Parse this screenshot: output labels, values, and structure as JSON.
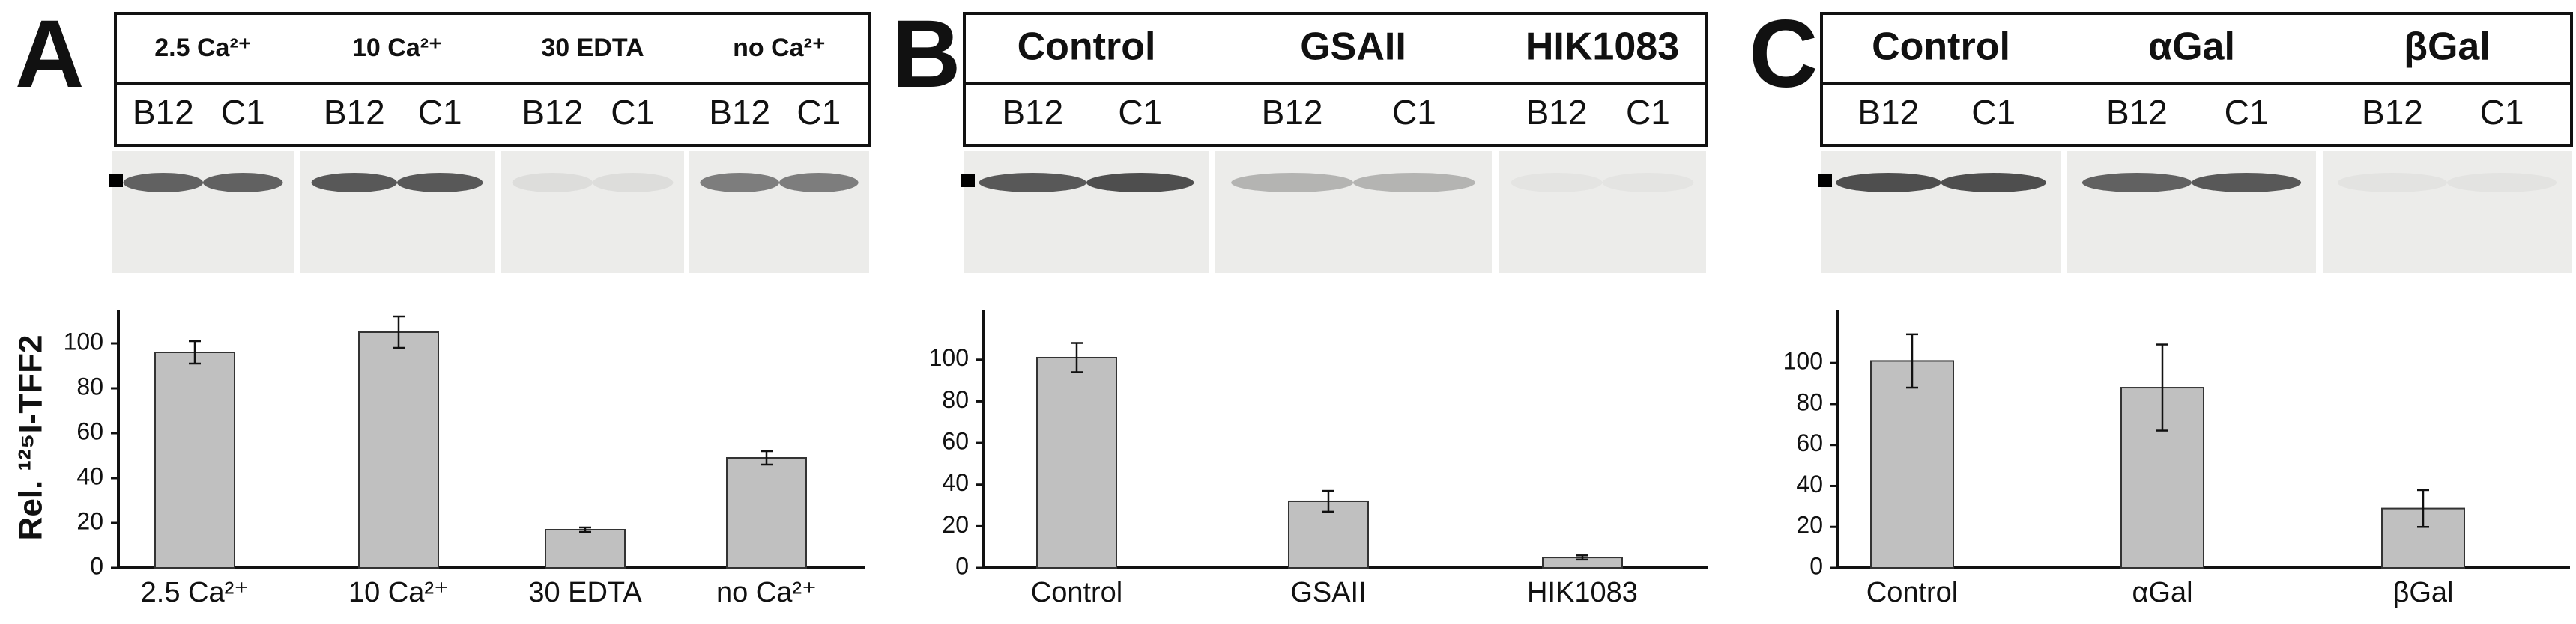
{
  "chart_data": [
    {
      "type": "bar",
      "panel_label": "A",
      "y_label": "Rel. ¹²⁵I-TFF2",
      "conditions": [
        "2.5 Ca²⁺",
        "10 Ca²⁺",
        "30 EDTA",
        "no Ca²⁺"
      ],
      "lanes": [
        [
          "B12",
          "C1"
        ],
        [
          "B12",
          "C1"
        ],
        [
          "B12",
          "C1"
        ],
        [
          "B12",
          "C1"
        ]
      ],
      "categories": [
        "2.5 Ca²⁺",
        "10 Ca²⁺",
        "30 EDTA",
        "no Ca²⁺"
      ],
      "values": [
        96,
        105,
        17,
        49
      ],
      "errors": [
        5,
        7,
        1,
        3
      ],
      "color": "#c0c0c0",
      "ylim": [
        0,
        115
      ],
      "yticks": [
        0,
        20,
        40,
        60,
        80,
        100
      ]
    },
    {
      "type": "bar",
      "panel_label": "B",
      "conditions": [
        "Control",
        "GSAII",
        "HIK1083"
      ],
      "lanes": [
        [
          "B12",
          "C1"
        ],
        [
          "B12",
          "C1"
        ],
        [
          "B12",
          "C1"
        ]
      ],
      "categories": [
        "Control",
        "GSAII",
        "HIK1083"
      ],
      "values": [
        101,
        32,
        5
      ],
      "errors": [
        7,
        5,
        1
      ],
      "color": "#c0c0c0",
      "ylim": [
        0,
        124
      ],
      "yticks": [
        0,
        20,
        40,
        60,
        80,
        100
      ]
    },
    {
      "type": "bar",
      "panel_label": "C",
      "conditions": [
        "Control",
        "αGal",
        "βGal"
      ],
      "lanes": [
        [
          "B12",
          "C1"
        ],
        [
          "B12",
          "C1"
        ],
        [
          "B12",
          "C1"
        ]
      ],
      "categories": [
        "Control",
        "αGal",
        "βGal"
      ],
      "values": [
        101,
        88,
        29
      ],
      "errors": [
        13,
        21,
        9
      ],
      "color": "#c0c0c0",
      "ylim": [
        0,
        126
      ],
      "yticks": [
        0,
        20,
        40,
        60,
        80,
        100
      ]
    }
  ]
}
